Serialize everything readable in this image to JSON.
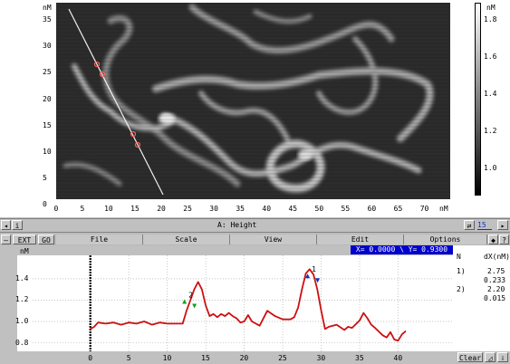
{
  "image_view": {
    "unit_y": "nM",
    "unit_x": "nM",
    "y_ticks": [
      "35",
      "30",
      "25",
      "20",
      "15",
      "10",
      "5",
      "0"
    ],
    "x_ticks": [
      "0",
      "5",
      "10",
      "15",
      "20",
      "25",
      "30",
      "35",
      "40",
      "45",
      "50",
      "55",
      "60",
      "65",
      "70"
    ],
    "scale_unit": "nM",
    "scale_ticks": [
      "1.8",
      "1.6",
      "1.4",
      "1.2",
      "1.0"
    ]
  },
  "status_bar": {
    "nav_left": "◂",
    "info_label": "i",
    "channel_title": "A: Height",
    "zoom_icon": "⇄",
    "frame_number": "15",
    "nav_right": "▸"
  },
  "menu_bar": {
    "minus_label": "–",
    "ext_label": "EXT",
    "go_label": "GO",
    "file_label": "File",
    "scale_label": "Scale",
    "view_label": "View",
    "edit_label": "Edit",
    "options_label": "Options",
    "spin_label": "◆",
    "help_label": "?"
  },
  "coord_readout": "X= 0.0000 \\ Y= 0.9300",
  "profile": {
    "unit_y": "nM",
    "y_ticks": [
      "1.4",
      "1.2",
      "1.0",
      "0.8"
    ],
    "x_ticks": [
      "0",
      "5",
      "10",
      "15",
      "20",
      "25",
      "30",
      "35",
      "40"
    ],
    "line_color": "#cc1010",
    "markers": [
      {
        "label": "2",
        "x": 13.2
      },
      {
        "label": "1",
        "x": 29.0
      }
    ]
  },
  "chart_data": {
    "type": "line",
    "title": "",
    "xlabel": "",
    "ylabel": "nM",
    "xlim": [
      -7.5,
      47
    ],
    "ylim": [
      0.72,
      1.62
    ],
    "series": [
      {
        "x": [
          0,
          0.5,
          1,
          2,
          3,
          4,
          5,
          6,
          7,
          8,
          9,
          10,
          11,
          12,
          12.5,
          13,
          13.5,
          14,
          14.5,
          15,
          15.5,
          16,
          16.5,
          17,
          17.5,
          18,
          18.5,
          19,
          19.5,
          20,
          20.5,
          21,
          22,
          23,
          24,
          25,
          26,
          26.5,
          27,
          27.5,
          28,
          28.5,
          29,
          29.5,
          30,
          30.5,
          31,
          32,
          33,
          33.5,
          34,
          35,
          35.5,
          36,
          36.5,
          37,
          38,
          38.5,
          39,
          39.5,
          40,
          40.5,
          41
        ],
        "values": [
          0.93,
          0.95,
          0.99,
          0.98,
          0.99,
          0.97,
          0.99,
          0.98,
          1.0,
          0.97,
          0.99,
          0.98,
          0.98,
          0.98,
          1.1,
          1.2,
          1.3,
          1.37,
          1.3,
          1.15,
          1.05,
          1.07,
          1.04,
          1.07,
          1.05,
          1.08,
          1.05,
          1.03,
          0.99,
          1.0,
          1.06,
          1.0,
          0.96,
          1.1,
          1.05,
          1.02,
          1.02,
          1.04,
          1.13,
          1.3,
          1.45,
          1.49,
          1.44,
          1.3,
          1.1,
          0.93,
          0.95,
          0.97,
          0.92,
          0.95,
          0.94,
          1.01,
          1.08,
          1.03,
          0.97,
          0.94,
          0.87,
          0.85,
          0.9,
          0.83,
          0.82,
          0.88,
          0.91
        ]
      }
    ]
  },
  "side_panel": {
    "col_n": "N",
    "col_dx": "dX(nM)",
    "rows": [
      {
        "n": "1)",
        "dx": "2.75",
        "dy": "0.233"
      },
      {
        "n": "2)",
        "dx": "2.20",
        "dy": "0.015"
      }
    ]
  },
  "bottom_bar": {
    "clear_label": "Clear",
    "cursor_icon": "◿",
    "arrow_icon": "⇩"
  },
  "colors": {
    "line": "#cc1010",
    "readout_bg": "#0000cc",
    "marker_green": "#10a020",
    "marker_blue": "#1030c0"
  }
}
